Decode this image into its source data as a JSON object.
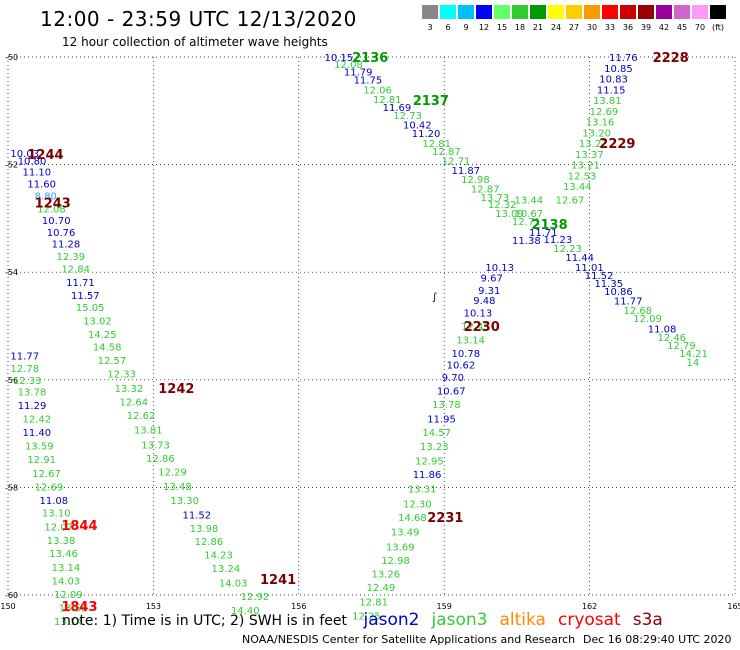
{
  "title": "12:00 - 23:59 UTC 12/13/2020",
  "subtitle": "12 hour collection of altimeter wave heights",
  "legend": {
    "unit": "(ft)",
    "entries": [
      {
        "label": "3",
        "color": "#888888"
      },
      {
        "label": "6",
        "color": "#00ffff"
      },
      {
        "label": "9",
        "color": "#00c0ff"
      },
      {
        "label": "12",
        "color": "#0000ff"
      },
      {
        "label": "15",
        "color": "#66ff66"
      },
      {
        "label": "18",
        "color": "#33cc33"
      },
      {
        "label": "21",
        "color": "#009900"
      },
      {
        "label": "24",
        "color": "#ffff00"
      },
      {
        "label": "27",
        "color": "#ffcc00"
      },
      {
        "label": "30",
        "color": "#ff9900"
      },
      {
        "label": "33",
        "color": "#ff0000"
      },
      {
        "label": "36",
        "color": "#cc0000"
      },
      {
        "label": "39",
        "color": "#990000"
      },
      {
        "label": "42",
        "color": "#990099"
      },
      {
        "label": "45",
        "color": "#cc66cc"
      },
      {
        "label": "70",
        "color": "#ff99ff"
      },
      {
        "label": "",
        "color": "#000000"
      }
    ]
  },
  "axes": {
    "lon_ticks": [
      "150",
      "153",
      "156",
      "159",
      "162",
      "165"
    ],
    "lat_ticks": [
      "-50",
      "-52",
      "-54",
      "-56",
      "-58",
      "-60"
    ],
    "lon_range": [
      150,
      165
    ],
    "lat_range": [
      -50,
      -60
    ]
  },
  "colors": {
    "j2": "#0000cc",
    "j3": "#33cc33",
    "alt_light": "#3399ff",
    "track_dark": "#7a0000",
    "track_red": "#ff0000",
    "track_green": "#009900",
    "s3a": "#880000",
    "cryosat": "#ff0000",
    "altika": "#ff8800"
  },
  "map_marks": {
    "glyph": "∫"
  },
  "tracks": [
    {
      "id": "2136",
      "color": "track_green",
      "lon": 157.1,
      "lat": -50.0
    },
    {
      "id": "2137",
      "color": "track_green",
      "lon": 158.35,
      "lat": -50.8
    },
    {
      "id": "2138",
      "color": "track_green",
      "lon": 160.8,
      "lat": -53.1
    },
    {
      "id": "2228",
      "color": "track_dark",
      "lon": 163.3,
      "lat": -50.0
    },
    {
      "id": "2229",
      "color": "track_dark",
      "lon": 162.2,
      "lat": -51.6
    },
    {
      "id": "2230",
      "color": "track_dark",
      "lon": 159.4,
      "lat": -55.0
    },
    {
      "id": "2231",
      "color": "track_dark",
      "lon": 158.65,
      "lat": -58.55
    },
    {
      "id": "1241",
      "color": "track_dark",
      "lon": 155.2,
      "lat": -59.7
    },
    {
      "id": "1242",
      "color": "track_dark",
      "lon": 153.1,
      "lat": -56.15
    },
    {
      "id": "1243",
      "color": "track_dark",
      "lon": 150.55,
      "lat": -52.7
    },
    {
      "id": "1244",
      "color": "track_dark",
      "lon": 150.4,
      "lat": -51.8
    },
    {
      "id": "1843",
      "color": "track_red",
      "lon": 151.1,
      "lat": -60.2
    },
    {
      "id": "1844",
      "color": "track_red",
      "lon": 151.1,
      "lat": -58.7
    }
  ],
  "observations": [
    {
      "v": "10.15",
      "c": "j2",
      "lon": 156.53,
      "lat": -50.0
    },
    {
      "v": "12.08",
      "c": "j3",
      "lon": 156.73,
      "lat": -50.13
    },
    {
      "v": "11.79",
      "c": "j2",
      "lon": 156.93,
      "lat": -50.27
    },
    {
      "v": "11.75",
      "c": "j2",
      "lon": 157.13,
      "lat": -50.42
    },
    {
      "v": "12.06",
      "c": "j3",
      "lon": 157.33,
      "lat": -50.6
    },
    {
      "v": "12.81",
      "c": "j3",
      "lon": 157.53,
      "lat": -50.78
    },
    {
      "v": "11.69",
      "c": "j2",
      "lon": 157.73,
      "lat": -50.93
    },
    {
      "v": "12.73",
      "c": "j3",
      "lon": 157.95,
      "lat": -51.08
    },
    {
      "v": "10.42",
      "c": "j2",
      "lon": 158.15,
      "lat": -51.25
    },
    {
      "v": "11.20",
      "c": "j2",
      "lon": 158.33,
      "lat": -51.41
    },
    {
      "v": "12.81",
      "c": "j3",
      "lon": 158.55,
      "lat": -51.6
    },
    {
      "v": "12.87",
      "c": "j3",
      "lon": 158.75,
      "lat": -51.75
    },
    {
      "v": "12.71",
      "c": "j3",
      "lon": 158.95,
      "lat": -51.92
    },
    {
      "v": "11.87",
      "c": "j2",
      "lon": 159.15,
      "lat": -52.1
    },
    {
      "v": "12.98",
      "c": "j3",
      "lon": 159.35,
      "lat": -52.27
    },
    {
      "v": "12.87",
      "c": "j3",
      "lon": 159.55,
      "lat": -52.44
    },
    {
      "v": "13.73",
      "c": "j3",
      "lon": 159.75,
      "lat": -52.6
    },
    {
      "v": "12.32",
      "c": "j3",
      "lon": 159.9,
      "lat": -52.73
    },
    {
      "v": "13.44",
      "c": "j3",
      "lon": 160.45,
      "lat": -52.65
    },
    {
      "v": "13.09",
      "c": "j3",
      "lon": 160.05,
      "lat": -52.9
    },
    {
      "v": "10.67",
      "c": "j3",
      "lon": 160.45,
      "lat": -52.9
    },
    {
      "v": "12.71",
      "c": "j3",
      "lon": 160.4,
      "lat": -53.05
    },
    {
      "v": "11.71",
      "c": "j2",
      "lon": 160.75,
      "lat": -53.25
    },
    {
      "v": "11.38",
      "c": "j2",
      "lon": 160.4,
      "lat": -53.4
    },
    {
      "v": "11.23",
      "c": "j2",
      "lon": 161.05,
      "lat": -53.38
    },
    {
      "v": "12.23",
      "c": "j3",
      "lon": 161.25,
      "lat": -53.55
    },
    {
      "v": "11.44",
      "c": "j2",
      "lon": 161.5,
      "lat": -53.72
    },
    {
      "v": "11.01",
      "c": "j2",
      "lon": 161.7,
      "lat": -53.9
    },
    {
      "v": "11.52",
      "c": "j2",
      "lon": 161.9,
      "lat": -54.05
    },
    {
      "v": "11.35",
      "c": "j2",
      "lon": 162.1,
      "lat": -54.2
    },
    {
      "v": "10.86",
      "c": "j2",
      "lon": 162.3,
      "lat": -54.35
    },
    {
      "v": "11.77",
      "c": "j2",
      "lon": 162.5,
      "lat": -54.53
    },
    {
      "v": "12.68",
      "c": "j3",
      "lon": 162.7,
      "lat": -54.7
    },
    {
      "v": "12.09",
      "c": "j3",
      "lon": 162.9,
      "lat": -54.85
    },
    {
      "v": "11.08",
      "c": "j2",
      "lon": 163.2,
      "lat": -55.05
    },
    {
      "v": "12.46",
      "c": "j3",
      "lon": 163.4,
      "lat": -55.2
    },
    {
      "v": "12.79",
      "c": "j3",
      "lon": 163.6,
      "lat": -55.35
    },
    {
      "v": "14.21",
      "c": "j3",
      "lon": 163.85,
      "lat": -55.5
    },
    {
      "v": "14",
      "c": "j3",
      "lon": 164.0,
      "lat": -55.67
    },
    {
      "v": "11.76",
      "c": "j2",
      "lon": 162.4,
      "lat": -50.0
    },
    {
      "v": "10.85",
      "c": "j2",
      "lon": 162.3,
      "lat": -50.2
    },
    {
      "v": "10.83",
      "c": "j2",
      "lon": 162.2,
      "lat": -50.4
    },
    {
      "v": "11.15",
      "c": "j2",
      "lon": 162.15,
      "lat": -50.6
    },
    {
      "v": "13.81",
      "c": "j3",
      "lon": 162.07,
      "lat": -50.8
    },
    {
      "v": "12.69",
      "c": "j3",
      "lon": 162.0,
      "lat": -51.0
    },
    {
      "v": "13.16",
      "c": "j3",
      "lon": 161.92,
      "lat": -51.2
    },
    {
      "v": "13.20",
      "c": "j3",
      "lon": 161.85,
      "lat": -51.4
    },
    {
      "v": "13.22",
      "c": "j3",
      "lon": 161.78,
      "lat": -51.6
    },
    {
      "v": "13.37",
      "c": "j3",
      "lon": 161.7,
      "lat": -51.8
    },
    {
      "v": "13.21",
      "c": "j3",
      "lon": 161.62,
      "lat": -52.0
    },
    {
      "v": "12.53",
      "c": "j3",
      "lon": 161.55,
      "lat": -52.2
    },
    {
      "v": "13.44",
      "c": "j3",
      "lon": 161.45,
      "lat": -52.4
    },
    {
      "v": "12.67",
      "c": "j3",
      "lon": 161.3,
      "lat": -52.65
    },
    {
      "v": "10.13",
      "c": "j2",
      "lon": 159.85,
      "lat": -53.9
    },
    {
      "v": "9.67",
      "c": "j2",
      "lon": 159.75,
      "lat": -54.1
    },
    {
      "v": "9.31",
      "c": "j2",
      "lon": 159.7,
      "lat": -54.33
    },
    {
      "v": "9.48",
      "c": "j2",
      "lon": 159.6,
      "lat": -54.52
    },
    {
      "v": "10.13",
      "c": "j2",
      "lon": 159.4,
      "lat": -54.75
    },
    {
      "v": "12.45",
      "c": "j3",
      "lon": 159.35,
      "lat": -55.0
    },
    {
      "v": "13.14",
      "c": "j3",
      "lon": 159.25,
      "lat": -55.25
    },
    {
      "v": "10.78",
      "c": "j2",
      "lon": 159.15,
      "lat": -55.5
    },
    {
      "v": "10.62",
      "c": "j2",
      "lon": 159.05,
      "lat": -55.72
    },
    {
      "v": "9.70",
      "c": "j2",
      "lon": 158.95,
      "lat": -55.95
    },
    {
      "v": "10.67",
      "c": "j2",
      "lon": 158.85,
      "lat": -56.2
    },
    {
      "v": "13.78",
      "c": "j3",
      "lon": 158.75,
      "lat": -56.45
    },
    {
      "v": "11.95",
      "c": "j2",
      "lon": 158.65,
      "lat": -56.72
    },
    {
      "v": "14.57",
      "c": "j3",
      "lon": 158.55,
      "lat": -56.97
    },
    {
      "v": "13.23",
      "c": "j3",
      "lon": 158.5,
      "lat": -57.23
    },
    {
      "v": "12.95",
      "c": "j3",
      "lon": 158.4,
      "lat": -57.5
    },
    {
      "v": "11.86",
      "c": "j2",
      "lon": 158.35,
      "lat": -57.75
    },
    {
      "v": "13.31",
      "c": "j3",
      "lon": 158.25,
      "lat": -58.02
    },
    {
      "v": "12.30",
      "c": "j3",
      "lon": 158.15,
      "lat": -58.3
    },
    {
      "v": "14.68",
      "c": "j3",
      "lon": 158.05,
      "lat": -58.55
    },
    {
      "v": "13.49",
      "c": "j3",
      "lon": 157.9,
      "lat": -58.82
    },
    {
      "v": "13.69",
      "c": "j3",
      "lon": 157.8,
      "lat": -59.1
    },
    {
      "v": "12.98",
      "c": "j3",
      "lon": 157.7,
      "lat": -59.35
    },
    {
      "v": "13.26",
      "c": "j3",
      "lon": 157.5,
      "lat": -59.6
    },
    {
      "v": "12.49",
      "c": "j3",
      "lon": 157.4,
      "lat": -59.85
    },
    {
      "v": "12.81",
      "c": "j3",
      "lon": 157.25,
      "lat": -60.12
    },
    {
      "v": "12.25",
      "c": "j3",
      "lon": 157.1,
      "lat": -60.38
    },
    {
      "v": "10.03",
      "c": "j2",
      "lon": 150.05,
      "lat": -51.78
    },
    {
      "v": "10.80",
      "c": "j2",
      "lon": 150.2,
      "lat": -51.92
    },
    {
      "v": "11.10",
      "c": "j2",
      "lon": 150.3,
      "lat": -52.13
    },
    {
      "v": "11.60",
      "c": "j2",
      "lon": 150.4,
      "lat": -52.35
    },
    {
      "v": "8.80",
      "c": "alt_light",
      "lon": 150.55,
      "lat": -52.57
    },
    {
      "v": "12.08",
      "c": "j3",
      "lon": 150.6,
      "lat": -52.82
    },
    {
      "v": "10.70",
      "c": "j2",
      "lon": 150.7,
      "lat": -53.03
    },
    {
      "v": "10.76",
      "c": "j2",
      "lon": 150.8,
      "lat": -53.25
    },
    {
      "v": "11.28",
      "c": "j2",
      "lon": 150.9,
      "lat": -53.47
    },
    {
      "v": "12.39",
      "c": "j3",
      "lon": 151.0,
      "lat": -53.7
    },
    {
      "v": "12.84",
      "c": "j3",
      "lon": 151.1,
      "lat": -53.93
    },
    {
      "v": "11.71",
      "c": "j2",
      "lon": 151.2,
      "lat": -54.18
    },
    {
      "v": "11.57",
      "c": "j2",
      "lon": 151.3,
      "lat": -54.42
    },
    {
      "v": "15.05",
      "c": "j3",
      "lon": 151.4,
      "lat": -54.65
    },
    {
      "v": "13.02",
      "c": "j3",
      "lon": 151.55,
      "lat": -54.9
    },
    {
      "v": "14.25",
      "c": "j3",
      "lon": 151.65,
      "lat": -55.15
    },
    {
      "v": "14.58",
      "c": "j3",
      "lon": 151.75,
      "lat": -55.38
    },
    {
      "v": "12.57",
      "c": "j3",
      "lon": 151.85,
      "lat": -55.63
    },
    {
      "v": "12.33",
      "c": "j3",
      "lon": 152.05,
      "lat": -55.88
    },
    {
      "v": "13.32",
      "c": "j3",
      "lon": 152.2,
      "lat": -56.15
    },
    {
      "v": "12.64",
      "c": "j3",
      "lon": 152.3,
      "lat": -56.4
    },
    {
      "v": "12.62",
      "c": "j3",
      "lon": 152.45,
      "lat": -56.65
    },
    {
      "v": "13.81",
      "c": "j3",
      "lon": 152.6,
      "lat": -56.92
    },
    {
      "v": "13.73",
      "c": "j3",
      "lon": 152.75,
      "lat": -57.2
    },
    {
      "v": "12.86",
      "c": "j3",
      "lon": 152.85,
      "lat": -57.45
    },
    {
      "v": "12.29",
      "c": "j3",
      "lon": 153.1,
      "lat": -57.7
    },
    {
      "v": "13.48",
      "c": "j3",
      "lon": 153.2,
      "lat": -57.97
    },
    {
      "v": "13.30",
      "c": "j3",
      "lon": 153.35,
      "lat": -58.23
    },
    {
      "v": "11.52",
      "c": "j2",
      "lon": 153.6,
      "lat": -58.5
    },
    {
      "v": "13.98",
      "c": "j3",
      "lon": 153.75,
      "lat": -58.75
    },
    {
      "v": "12.86",
      "c": "j3",
      "lon": 153.85,
      "lat": -59.0
    },
    {
      "v": "14.23",
      "c": "j3",
      "lon": 154.05,
      "lat": -59.25
    },
    {
      "v": "13.24",
      "c": "j3",
      "lon": 154.2,
      "lat": -59.5
    },
    {
      "v": "14.03",
      "c": "j3",
      "lon": 154.35,
      "lat": -59.77
    },
    {
      "v": "12.92",
      "c": "j3",
      "lon": 154.8,
      "lat": -60.02
    },
    {
      "v": "14.40",
      "c": "j3",
      "lon": 154.6,
      "lat": -60.28
    },
    {
      "v": "11.77",
      "c": "j2",
      "lon": 150.05,
      "lat": -55.55
    },
    {
      "v": "12.78",
      "c": "j3",
      "lon": 150.05,
      "lat": -55.78
    },
    {
      "v": "12.33",
      "c": "j3",
      "lon": 150.1,
      "lat": -56.0
    },
    {
      "v": "13.78",
      "c": "j3",
      "lon": 150.2,
      "lat": -56.22
    },
    {
      "v": "11.29",
      "c": "j2",
      "lon": 150.2,
      "lat": -56.47
    },
    {
      "v": "12.42",
      "c": "j3",
      "lon": 150.3,
      "lat": -56.72
    },
    {
      "v": "11.40",
      "c": "j2",
      "lon": 150.3,
      "lat": -56.97
    },
    {
      "v": "13.59",
      "c": "j3",
      "lon": 150.35,
      "lat": -57.22
    },
    {
      "v": "12.91",
      "c": "j3",
      "lon": 150.4,
      "lat": -57.47
    },
    {
      "v": "12.67",
      "c": "j3",
      "lon": 150.5,
      "lat": -57.73
    },
    {
      "v": "12.69",
      "c": "j3",
      "lon": 150.55,
      "lat": -57.98
    },
    {
      "v": "11.08",
      "c": "j2",
      "lon": 150.65,
      "lat": -58.23
    },
    {
      "v": "13.10",
      "c": "j3",
      "lon": 150.7,
      "lat": -58.47
    },
    {
      "v": "12.07",
      "c": "j3",
      "lon": 150.75,
      "lat": -58.73
    },
    {
      "v": "13.38",
      "c": "j3",
      "lon": 150.8,
      "lat": -58.98
    },
    {
      "v": "13.46",
      "c": "j3",
      "lon": 150.85,
      "lat": -59.22
    },
    {
      "v": "13.14",
      "c": "j3",
      "lon": 150.9,
      "lat": -59.48
    },
    {
      "v": "14.03",
      "c": "j3",
      "lon": 150.9,
      "lat": -59.73
    },
    {
      "v": "12.09",
      "c": "j3",
      "lon": 150.95,
      "lat": -59.98
    },
    {
      "v": "13.56",
      "c": "j3",
      "lon": 151.05,
      "lat": -60.23
    },
    {
      "v": "13.14",
      "c": "j3",
      "lon": 150.95,
      "lat": -60.48
    }
  ],
  "footer": {
    "note": "note: 1) Time is in UTC; 2) SWH is in feet",
    "satellites": [
      {
        "name": "jason2",
        "color": "j2"
      },
      {
        "name": "jason3",
        "color": "j3"
      },
      {
        "name": "altika",
        "color": "altika"
      },
      {
        "name": "cryosat",
        "color": "cryosat"
      },
      {
        "name": "s3a",
        "color": "s3a"
      }
    ],
    "credit": "NOAA/NESDIS Center for Satellite Applications and Research",
    "timestamp": "Dec 16 08:29:40 UTC 2020"
  }
}
